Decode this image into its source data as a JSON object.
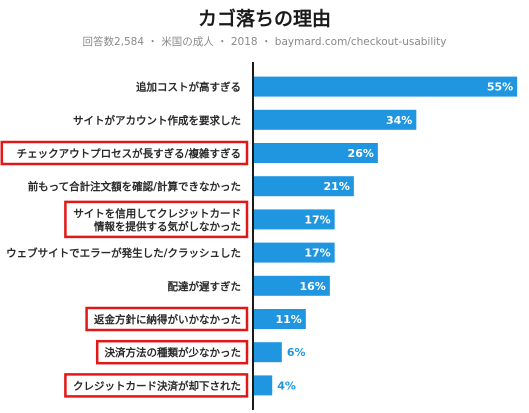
{
  "chart_data": {
    "type": "bar",
    "orientation": "horizontal",
    "title": "カゴ落ちの理由",
    "subtitle": "回答数2,584 ・ 米国の成人 ・ 2018 ・ baymard.com/checkout-usability",
    "categories": [
      "追加コストが高すぎる",
      "サイトがアカウント作成を要求した",
      "チェックアウトプロセスが長すぎる/複雑すぎる",
      "前もって合計注文額を確認/計算できなかった",
      "サイトを信用してクレジットカード\n情報を提供する気がしなかった",
      "ウェブサイトでエラーが発生した/クラッシュした",
      "配達が遅すぎた",
      "返金方針に納得がいかなかった",
      "決済方法の種類が少なかった",
      "クレジットカード決済が却下された"
    ],
    "values": [
      55,
      34,
      26,
      21,
      17,
      17,
      16,
      11,
      6,
      4
    ],
    "value_labels": [
      "55%",
      "34%",
      "26%",
      "21%",
      "17%",
      "17%",
      "16%",
      "11%",
      "6%",
      "4%"
    ],
    "highlighted": [
      false,
      false,
      true,
      false,
      true,
      false,
      false,
      true,
      true,
      true
    ],
    "xlim": [
      0,
      56
    ],
    "bar_color": "#2196e0",
    "highlight_color": "#e01818",
    "axis_color": "#1a1a1a"
  }
}
